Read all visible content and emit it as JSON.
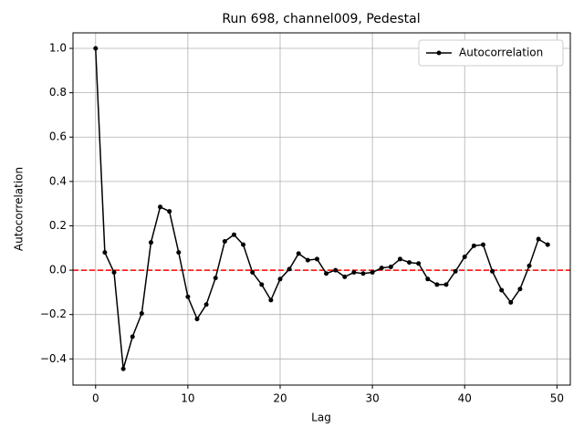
{
  "chart_data": {
    "type": "line",
    "title": "Run 698, channel009, Pedestal",
    "xlabel": "Lag",
    "ylabel": "Autocorrelation",
    "x": [
      0,
      1,
      2,
      3,
      4,
      5,
      6,
      7,
      8,
      9,
      10,
      11,
      12,
      13,
      14,
      15,
      16,
      17,
      18,
      19,
      20,
      21,
      22,
      23,
      24,
      25,
      26,
      27,
      28,
      29,
      30,
      31,
      32,
      33,
      34,
      35,
      36,
      37,
      38,
      39,
      40,
      41,
      42,
      43,
      44,
      45,
      46,
      47,
      48,
      49
    ],
    "series": [
      {
        "name": "Autocorrelation",
        "color": "#000000",
        "values": [
          1.0,
          0.08,
          -0.01,
          -0.445,
          -0.3,
          -0.195,
          0.125,
          0.285,
          0.265,
          0.08,
          -0.12,
          -0.22,
          -0.155,
          -0.035,
          0.13,
          0.16,
          0.115,
          -0.01,
          -0.065,
          -0.135,
          -0.04,
          0.005,
          0.075,
          0.045,
          0.05,
          -0.015,
          0.0,
          -0.03,
          -0.01,
          -0.015,
          -0.01,
          0.01,
          0.015,
          0.05,
          0.035,
          0.03,
          -0.04,
          -0.065,
          -0.065,
          -0.005,
          0.06,
          0.11,
          0.115,
          -0.005,
          -0.09,
          -0.145,
          -0.085,
          0.02,
          0.14,
          0.115
        ]
      }
    ],
    "reference_line": {
      "value": 0,
      "color": "#ff0000"
    },
    "xlim": [
      -2.45,
      51.45
    ],
    "xticks": [
      0,
      10,
      20,
      30,
      40,
      50
    ],
    "ylim": [
      -0.518,
      1.07
    ],
    "yticks": [
      {
        "value": -0.4,
        "label": "−0.4"
      },
      {
        "value": -0.2,
        "label": "−0.2"
      },
      {
        "value": 0,
        "label": "0.0"
      },
      {
        "value": 0.2,
        "label": "0.2"
      },
      {
        "value": 0.4,
        "label": "0.4"
      },
      {
        "value": 0.6,
        "label": "0.6"
      },
      {
        "value": 0.8,
        "label": "0.8"
      },
      {
        "value": 1.0,
        "label": "1.0"
      }
    ],
    "grid": true,
    "legend": "upper-right"
  }
}
